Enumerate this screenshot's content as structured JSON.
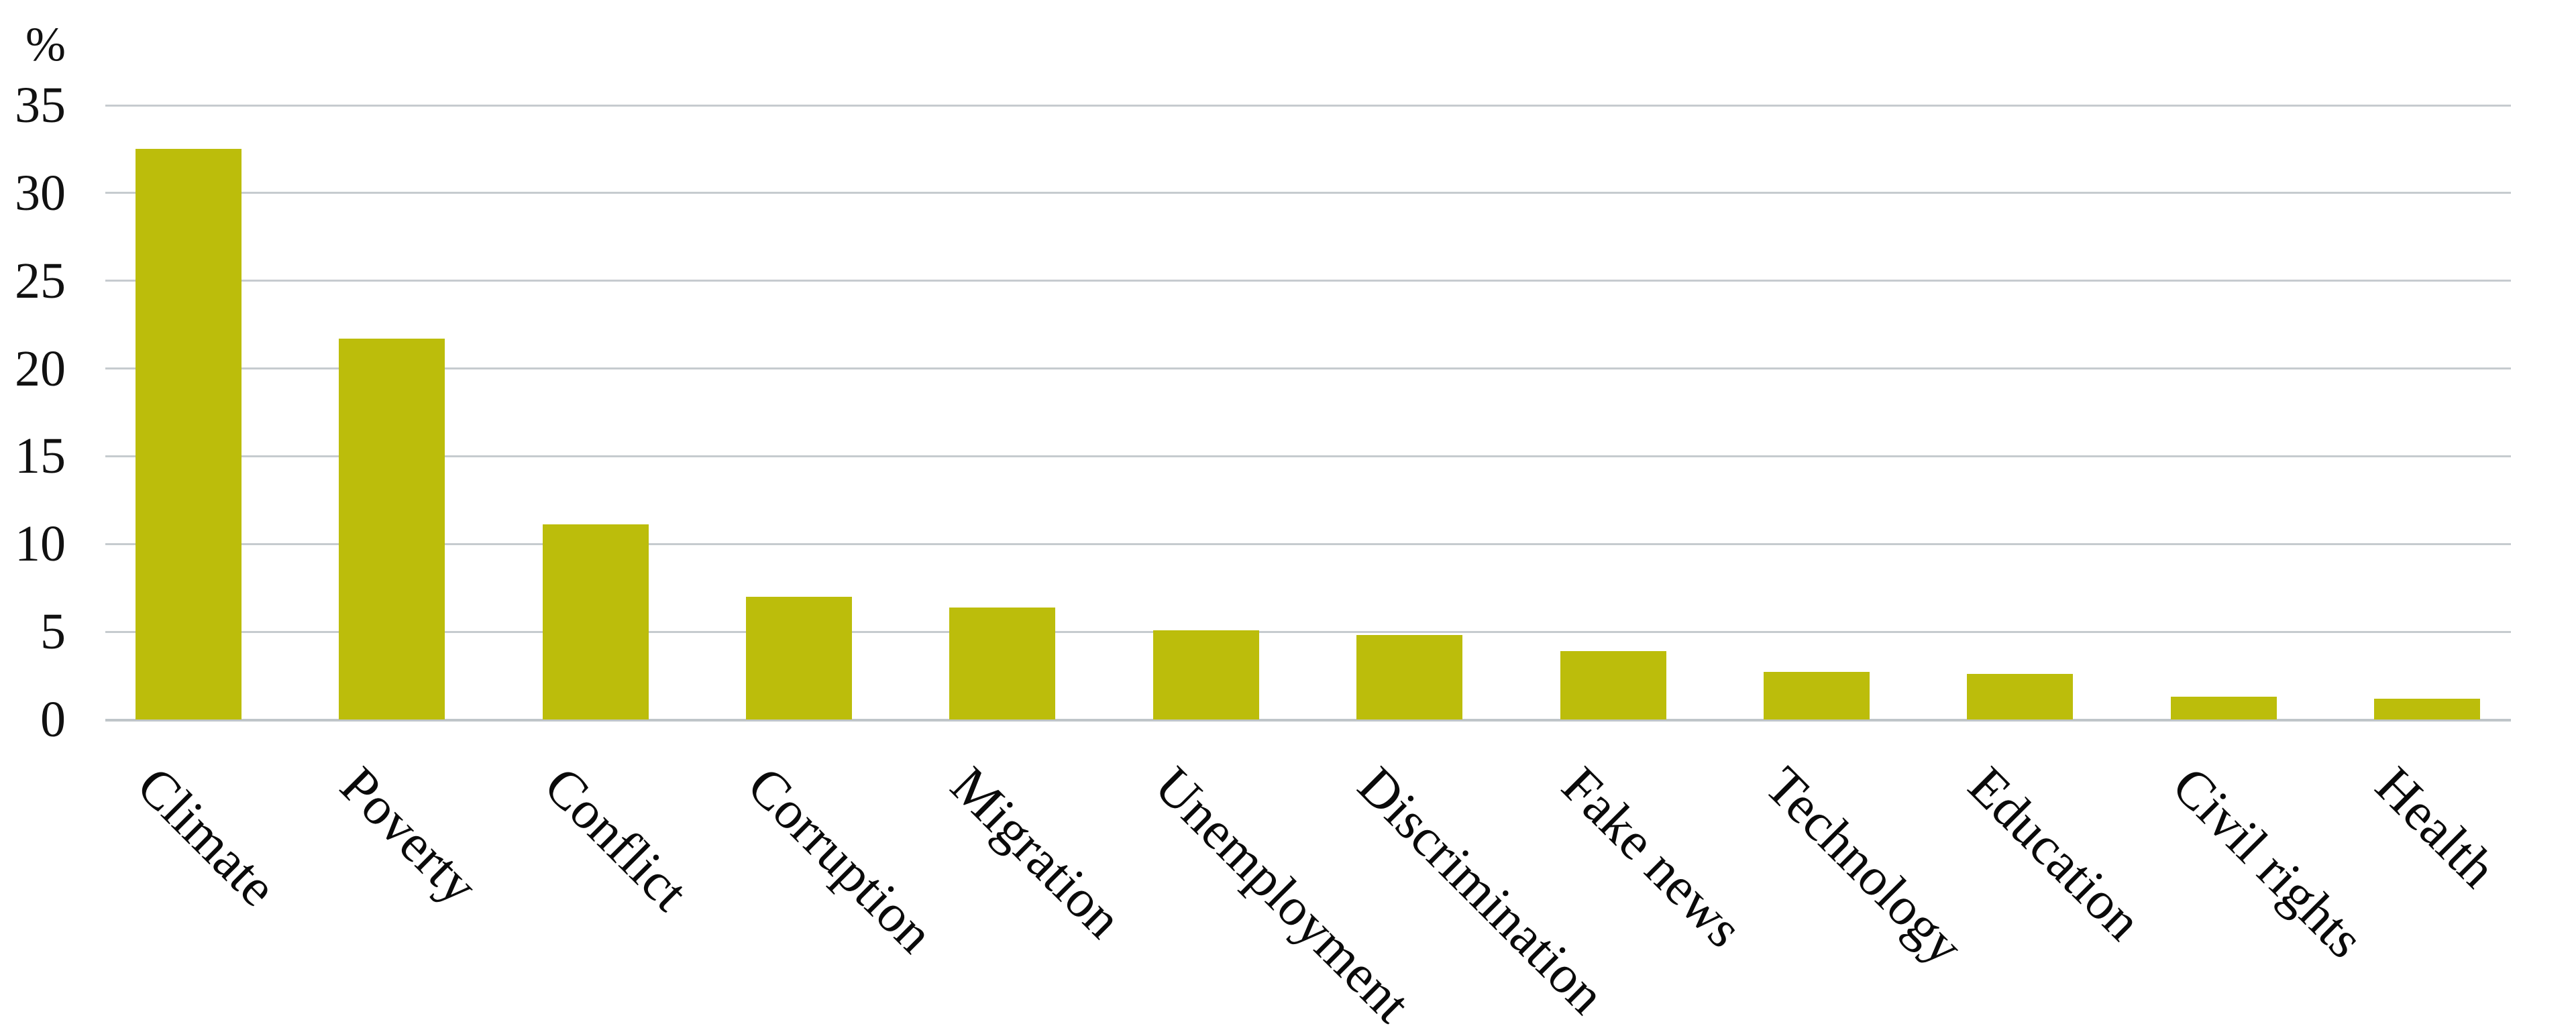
{
  "chart_data": {
    "type": "bar",
    "title": "",
    "xlabel": "",
    "ylabel": "%",
    "categories": [
      "Climate",
      "Poverty",
      "Conflict",
      "Corruption",
      "Migration",
      "Unemployment",
      "Discrimination",
      "Fake news",
      "Technology",
      "Education",
      "Civil rights",
      "Health"
    ],
    "values": [
      32.5,
      21.7,
      11.1,
      7.0,
      6.4,
      5.1,
      4.8,
      3.9,
      2.7,
      2.6,
      1.3,
      1.2
    ],
    "yticks": [
      0,
      5,
      10,
      15,
      20,
      25,
      30,
      35
    ],
    "ylim": [
      0,
      35
    ],
    "bar_color": "#bcbd0b",
    "gridline_color": "#c6cbcf",
    "legend": null,
    "grid": "horizontal"
  }
}
